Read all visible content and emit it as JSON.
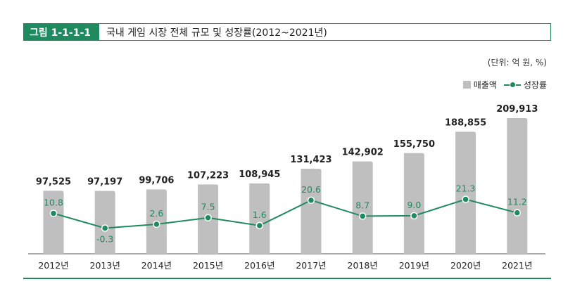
{
  "figure": {
    "label": "그림 1-1-1-1",
    "title": "국내 게임 시장 전체 규모 및 성장률(2012~2021년)",
    "unit": "(단위: 억 원, %)"
  },
  "legend": {
    "bar": "매출액",
    "line": "성장률"
  },
  "colors": {
    "accent": "#1f8a5f",
    "bar": "#bfbfbf",
    "text": "#222222"
  },
  "chart_data": {
    "type": "bar",
    "categories": [
      "2012년",
      "2013년",
      "2014년",
      "2015년",
      "2016년",
      "2017년",
      "2018년",
      "2019년",
      "2020년",
      "2021년"
    ],
    "series": [
      {
        "name": "매출액",
        "type": "bar",
        "values": [
          97525,
          97197,
          99706,
          107223,
          108945,
          131423,
          142902,
          155750,
          188855,
          209913
        ],
        "labels": [
          "97,525",
          "97,197",
          "99,706",
          "107,223",
          "108,945",
          "131,423",
          "142,902",
          "155,750",
          "188,855",
          "209,913"
        ]
      },
      {
        "name": "성장률",
        "type": "line",
        "values": [
          10.8,
          -0.3,
          2.6,
          7.5,
          1.6,
          20.6,
          8.7,
          9.0,
          21.3,
          11.2
        ],
        "labels": [
          "10.8",
          "-0.3",
          "2.6",
          "7.5",
          "1.6",
          "20.6",
          "8.7",
          "9.0",
          "21.3",
          "11.2"
        ]
      }
    ],
    "xlabel": "",
    "ylabel": "",
    "grid": false,
    "legend_position": "top-right"
  }
}
